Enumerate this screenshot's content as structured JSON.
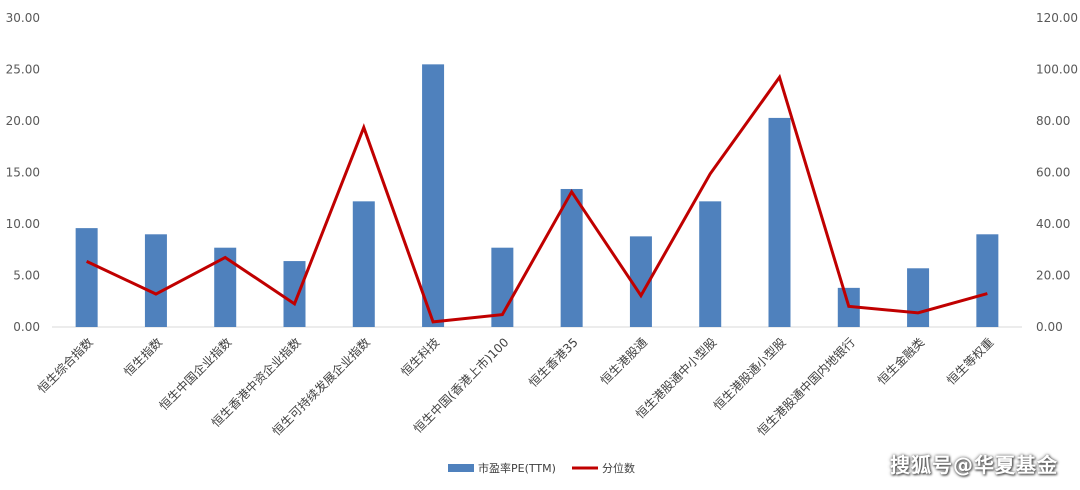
{
  "chart_data": {
    "type": "bar",
    "title": "",
    "categories": [
      "恒生综合指数",
      "恒生指数",
      "恒生中国企业指数",
      "恒生香港中资企业指数",
      "恒生可持续发展企业指数",
      "恒生科技",
      "恒生中国(香港上市)100",
      "恒生香港35",
      "恒生港股通",
      "恒生港股通中小型股",
      "恒生港股通小型股",
      "恒生港股通中国内地银行",
      "恒生金融类",
      "恒生等权重"
    ],
    "series": [
      {
        "name": "市盈率PE(TTM)",
        "type": "bar",
        "axis": "left",
        "color": "#4F81BD",
        "values": [
          9.6,
          9.0,
          7.7,
          6.4,
          12.2,
          25.5,
          7.7,
          13.4,
          8.8,
          12.2,
          20.3,
          3.8,
          5.7,
          9.0
        ]
      },
      {
        "name": "分位数",
        "type": "line",
        "axis": "right",
        "color": "#C00000",
        "values": [
          25.5,
          12.8,
          27.0,
          9.0,
          77.5,
          2.0,
          4.8,
          52.5,
          12.2,
          59.5,
          97.0,
          8.0,
          5.5,
          13.0
        ]
      }
    ],
    "y_left": {
      "min": 0,
      "max": 30,
      "ticks": [
        "0.00",
        "5.00",
        "10.00",
        "15.00",
        "20.00",
        "25.00",
        "30.00"
      ]
    },
    "y_right": {
      "min": 0,
      "max": 120,
      "ticks": [
        "0.00",
        "20.00",
        "40.00",
        "60.00",
        "80.00",
        "100.00",
        "120.00"
      ]
    },
    "legend": {
      "position": "bottom",
      "items": [
        "市盈率PE(TTM)",
        "分位数"
      ]
    },
    "grid": false
  },
  "watermark": "搜狐号@华夏基金"
}
